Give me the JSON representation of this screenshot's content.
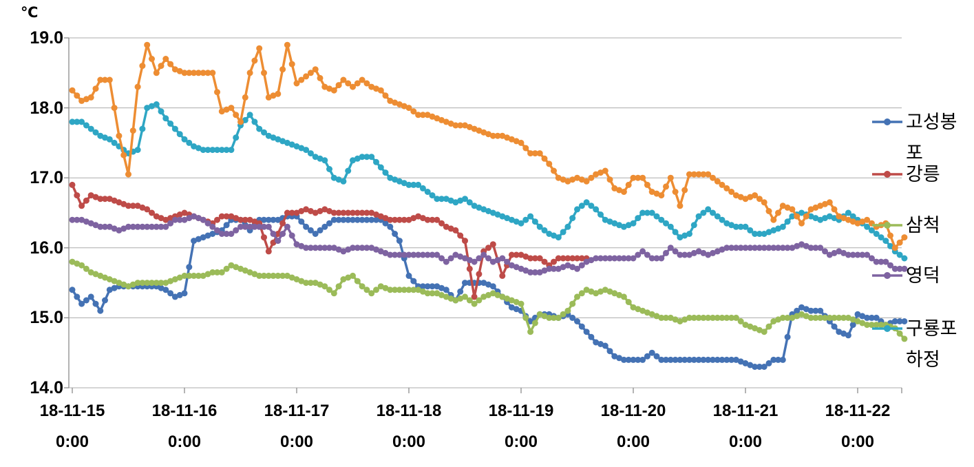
{
  "y_axis": {
    "unit_label": "℃",
    "ticks": [
      "19.0",
      "18.0",
      "17.0",
      "16.0",
      "15.0",
      "14.0"
    ],
    "min": 14.0,
    "max": 19.0
  },
  "x_axis": {
    "ticks": [
      "18-11-15",
      "18-11-16",
      "18-11-17",
      "18-11-18",
      "18-11-19",
      "18-11-20",
      "18-11-21",
      "18-11-22"
    ],
    "time_label": "0:00"
  },
  "legend": {
    "entries": [
      {
        "label": "고성봉포",
        "lines": [
          "고성봉",
          "포"
        ],
        "color": "#4472B4"
      },
      {
        "label": "강릉",
        "lines": [
          "강릉"
        ],
        "color": "#BE4B48"
      },
      {
        "label": "삼척",
        "lines": [
          "삼척"
        ],
        "color": "#9BBB59"
      },
      {
        "label": "영덕",
        "lines": [
          "영덕"
        ],
        "color": "#7E63A1"
      },
      {
        "label": "구룡포 하정",
        "lines": [
          "구룡포",
          "하정"
        ],
        "color": "#2EA6C4"
      }
    ]
  },
  "chart_data": {
    "type": "line",
    "title": "",
    "xlabel": "",
    "ylabel": "℃",
    "ylim": [
      14.0,
      19.0
    ],
    "grid": "horizontal",
    "legend_position": "right",
    "x_start": "18-11-15 0:00",
    "x_step_hours": 2,
    "x_total_hours": 178,
    "series": [
      {
        "name": "고성봉포",
        "legend_label": "고성봉포",
        "color": "#4472B4",
        "values": [
          15.4,
          15.2,
          15.3,
          15.1,
          15.4,
          15.45,
          15.45,
          15.45,
          15.45,
          15.45,
          15.4,
          15.3,
          15.35,
          16.1,
          16.15,
          16.2,
          16.25,
          16.4,
          16.4,
          16.25,
          16.4,
          16.4,
          16.4,
          16.45,
          16.45,
          16.3,
          16.2,
          16.3,
          16.4,
          16.4,
          16.4,
          16.4,
          16.4,
          16.4,
          16.3,
          16.1,
          15.6,
          15.45,
          15.45,
          15.45,
          15.4,
          15.25,
          15.5,
          15.5,
          15.5,
          15.45,
          15.3,
          15.15,
          15.1,
          14.95,
          15.05,
          15.05,
          15.0,
          15.05,
          14.95,
          14.8,
          14.65,
          14.6,
          14.45,
          14.4,
          14.4,
          14.4,
          14.5,
          14.4,
          14.4,
          14.4,
          14.4,
          14.4,
          14.4,
          14.4,
          14.4,
          14.4,
          14.35,
          14.3,
          14.3,
          14.4,
          14.4,
          15.05,
          15.15,
          15.1,
          15.1,
          14.95,
          14.8,
          14.75,
          15.05,
          15.0,
          15.0,
          14.9,
          14.95,
          14.95
        ]
      },
      {
        "name": "강릉",
        "legend_label": "강릉",
        "color": "#BE4B48",
        "values": [
          16.9,
          16.6,
          16.75,
          16.7,
          16.7,
          16.65,
          16.6,
          16.6,
          16.55,
          16.45,
          16.4,
          16.45,
          16.5,
          16.45,
          16.4,
          16.35,
          16.45,
          16.45,
          16.4,
          16.4,
          16.35,
          15.95,
          16.2,
          16.5,
          16.5,
          16.55,
          16.5,
          16.55,
          16.5,
          16.5,
          16.5,
          16.5,
          16.5,
          16.45,
          16.4,
          16.4,
          16.4,
          16.45,
          16.4,
          16.4,
          16.3,
          16.25,
          16.1,
          15.3,
          15.95,
          16.05,
          15.6,
          15.9,
          15.9,
          15.85,
          15.85,
          15.75,
          15.85,
          15.85,
          15.85,
          15.85,
          null,
          null,
          null,
          null,
          null,
          null,
          null,
          null,
          null,
          null,
          null,
          null,
          null,
          null,
          null,
          null,
          null,
          null,
          null,
          null,
          null,
          null,
          null,
          null,
          null,
          null,
          null,
          null,
          null,
          null,
          null,
          null,
          null,
          null
        ]
      },
      {
        "name": "삼척",
        "legend_label": "삼척",
        "color": "#9BBB59",
        "values": [
          15.8,
          15.75,
          15.65,
          15.6,
          15.55,
          15.5,
          15.45,
          15.5,
          15.5,
          15.5,
          15.5,
          15.55,
          15.6,
          15.6,
          15.6,
          15.65,
          15.65,
          15.75,
          15.7,
          15.65,
          15.6,
          15.6,
          15.6,
          15.6,
          15.55,
          15.5,
          15.5,
          15.45,
          15.35,
          15.55,
          15.6,
          15.45,
          15.35,
          15.45,
          15.4,
          15.4,
          15.4,
          15.4,
          15.35,
          15.35,
          15.3,
          15.25,
          15.3,
          15.2,
          15.3,
          15.35,
          15.3,
          15.25,
          15.2,
          14.8,
          15.05,
          15.0,
          15.0,
          15.1,
          15.3,
          15.4,
          15.35,
          15.4,
          15.35,
          15.3,
          15.15,
          15.1,
          15.05,
          15.0,
          15.0,
          14.95,
          15.0,
          15.0,
          15.0,
          15.0,
          15.0,
          15.0,
          14.9,
          14.85,
          14.8,
          14.95,
          15.0,
          15.0,
          15.05,
          15.0,
          15.0,
          15.0,
          15.0,
          15.0,
          14.95,
          14.9,
          14.9,
          14.9,
          14.85,
          14.7
        ]
      },
      {
        "name": "영덕",
        "legend_label": "영덕",
        "color": "#7E63A1",
        "values": [
          16.4,
          16.4,
          16.35,
          16.3,
          16.3,
          16.25,
          16.3,
          16.3,
          16.3,
          16.3,
          16.3,
          16.4,
          16.4,
          16.45,
          16.4,
          16.3,
          16.2,
          16.2,
          16.3,
          16.3,
          16.3,
          16.3,
          16.1,
          16.3,
          16.05,
          16.0,
          16.0,
          16.0,
          16.0,
          15.95,
          16.0,
          16.0,
          16.0,
          15.95,
          15.9,
          15.9,
          15.9,
          15.9,
          15.9,
          15.9,
          15.8,
          15.9,
          15.85,
          15.8,
          15.9,
          15.8,
          15.85,
          15.75,
          15.7,
          15.65,
          15.65,
          15.7,
          15.7,
          15.75,
          15.7,
          15.8,
          15.85,
          15.85,
          15.85,
          15.85,
          15.85,
          15.95,
          15.85,
          15.85,
          16.0,
          15.9,
          15.9,
          15.95,
          15.9,
          15.95,
          16.0,
          16.0,
          16.0,
          16.0,
          16.0,
          16.0,
          16.0,
          16.0,
          16.05,
          16.0,
          16.0,
          15.9,
          15.95,
          15.9,
          15.9,
          15.9,
          15.8,
          15.8,
          15.7,
          15.7
        ]
      },
      {
        "name": "구룡포 하정",
        "legend_label": "구룡포 하정",
        "color": "#2EA6C4",
        "values": [
          17.8,
          17.8,
          17.7,
          17.6,
          17.55,
          17.45,
          17.35,
          17.4,
          18.0,
          18.05,
          17.85,
          17.7,
          17.55,
          17.45,
          17.4,
          17.4,
          17.4,
          17.4,
          17.75,
          17.9,
          17.7,
          17.6,
          17.55,
          17.5,
          17.45,
          17.4,
          17.3,
          17.25,
          17.0,
          16.95,
          17.25,
          17.3,
          17.3,
          17.15,
          17.0,
          16.95,
          16.9,
          16.9,
          16.8,
          16.7,
          16.7,
          16.65,
          16.7,
          16.6,
          16.55,
          16.5,
          16.45,
          16.4,
          16.35,
          16.45,
          16.3,
          16.2,
          16.15,
          16.3,
          16.55,
          16.65,
          16.55,
          16.4,
          16.35,
          16.3,
          16.35,
          16.5,
          16.5,
          16.4,
          16.3,
          16.15,
          16.2,
          16.45,
          16.55,
          16.45,
          16.35,
          16.3,
          16.3,
          16.2,
          16.2,
          16.25,
          16.3,
          16.45,
          16.5,
          16.45,
          16.4,
          16.45,
          16.4,
          16.5,
          16.4,
          16.3,
          16.2,
          16.1,
          15.95,
          15.85
        ]
      },
      {
        "name": "unlabeled-series",
        "legend_label": null,
        "color": "#ED8D33",
        "values": [
          18.25,
          18.1,
          18.15,
          18.4,
          18.4,
          17.6,
          17.05,
          18.3,
          18.9,
          18.5,
          18.7,
          18.55,
          18.5,
          18.5,
          18.5,
          18.5,
          17.95,
          18.0,
          17.8,
          18.5,
          18.85,
          18.15,
          18.2,
          18.9,
          18.35,
          18.45,
          18.55,
          18.3,
          18.25,
          18.4,
          18.3,
          18.4,
          18.3,
          18.25,
          18.1,
          18.05,
          18.0,
          17.9,
          17.9,
          17.85,
          17.8,
          17.75,
          17.75,
          17.7,
          17.65,
          17.6,
          17.6,
          17.55,
          17.5,
          17.35,
          17.35,
          17.2,
          17.0,
          16.95,
          17.0,
          16.95,
          17.05,
          17.1,
          16.85,
          16.8,
          17.0,
          17.0,
          16.8,
          16.75,
          17.0,
          16.6,
          17.05,
          17.05,
          17.05,
          16.95,
          16.85,
          16.75,
          16.7,
          16.75,
          16.65,
          16.4,
          16.6,
          16.55,
          16.35,
          16.55,
          16.6,
          16.65,
          16.45,
          16.4,
          16.35,
          16.4,
          16.3,
          16.35,
          16.0,
          16.15
        ]
      }
    ]
  }
}
